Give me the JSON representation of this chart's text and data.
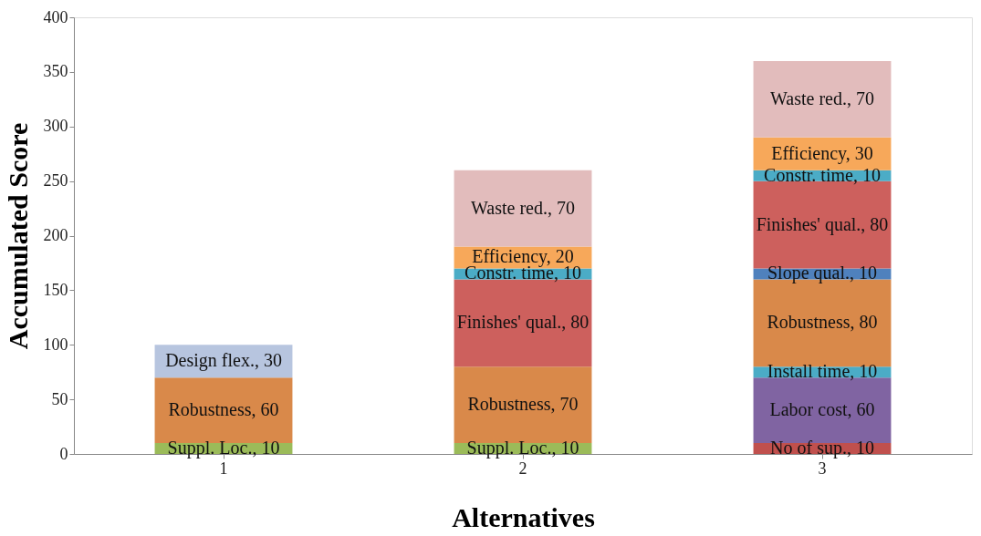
{
  "chart_data": {
    "type": "bar",
    "stacked": true,
    "xlabel": "Alternatives",
    "ylabel": "Accumulated Score",
    "categories": [
      "1",
      "2",
      "3"
    ],
    "ylim": [
      0,
      400
    ],
    "yticks": [
      0,
      50,
      100,
      150,
      200,
      250,
      300,
      350,
      400
    ],
    "grid": false,
    "legend": false,
    "series": [
      {
        "color": "#9bbb59",
        "values": [
          10,
          10,
          null
        ],
        "value_labels": [
          "Suppl. Loc., 10",
          "Suppl. Loc., 10",
          null
        ]
      },
      {
        "color": "#c0504d",
        "values": [
          null,
          null,
          10
        ],
        "value_labels": [
          null,
          null,
          "No of sup., 10"
        ]
      },
      {
        "color": "#8064a2",
        "values": [
          null,
          null,
          60
        ],
        "value_labels": [
          null,
          null,
          "Labor cost, 60"
        ]
      },
      {
        "color": "#4bacc6",
        "values": [
          null,
          null,
          10
        ],
        "value_labels": [
          null,
          null,
          "Install time, 10"
        ]
      },
      {
        "color": "#d9894a",
        "values": [
          60,
          70,
          80
        ],
        "value_labels": [
          "Robustness, 60",
          "Robustness, 70",
          "Robustness, 80"
        ]
      },
      {
        "color": "#4f81bd",
        "values": [
          null,
          null,
          10
        ],
        "value_labels": [
          null,
          null,
          "Slope qual., 10"
        ]
      },
      {
        "color": "#cd605d",
        "values": [
          null,
          80,
          80
        ],
        "value_labels": [
          null,
          "Finishes' qual., 80",
          "Finishes' qual., 80"
        ]
      },
      {
        "color": "#4bacc6",
        "values": [
          null,
          10,
          10
        ],
        "value_labels": [
          null,
          "Constr. time, 10",
          "Constr. time, 10"
        ]
      },
      {
        "color": "#f7a85a",
        "values": [
          null,
          20,
          30
        ],
        "value_labels": [
          null,
          "Efficiency, 20",
          "Efficiency, 30"
        ]
      },
      {
        "color": "#e2bcbc",
        "values": [
          null,
          70,
          70
        ],
        "value_labels": [
          null,
          "Waste red., 70",
          "Waste red., 70"
        ]
      },
      {
        "color": "#b7c5df",
        "values": [
          30,
          null,
          null
        ],
        "value_labels": [
          "Design flex., 30",
          null,
          null
        ]
      }
    ]
  }
}
